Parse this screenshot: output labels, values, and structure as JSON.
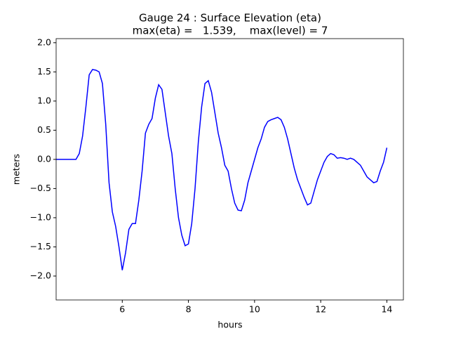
{
  "chart_data": {
    "type": "line",
    "title": "Gauge 24 : Surface Elevation (eta)",
    "subtitle": "max(eta) =   1.539,    max(level) = 7",
    "xlabel": "hours",
    "ylabel": "meters",
    "xlim": [
      4.0,
      14.5
    ],
    "ylim": [
      -2.41,
      2.07
    ],
    "xticks": [
      6,
      8,
      10,
      12,
      14
    ],
    "yticks": [
      {
        "value": -2.0,
        "label": "−2.0"
      },
      {
        "value": -1.5,
        "label": "−1.5"
      },
      {
        "value": -1.0,
        "label": "−1.0"
      },
      {
        "value": -0.5,
        "label": "−0.5"
      },
      {
        "value": 0.0,
        "label": "0.0"
      },
      {
        "value": 0.5,
        "label": "0.5"
      },
      {
        "value": 1.0,
        "label": "1.0"
      },
      {
        "value": 1.5,
        "label": "1.5"
      },
      {
        "value": 2.0,
        "label": "2.0"
      }
    ],
    "x": [
      4.0,
      4.2,
      4.4,
      4.6,
      4.7,
      4.8,
      4.9,
      5.0,
      5.1,
      5.2,
      5.3,
      5.4,
      5.5,
      5.6,
      5.7,
      5.8,
      5.9,
      6.0,
      6.1,
      6.2,
      6.3,
      6.4,
      6.5,
      6.6,
      6.7,
      6.8,
      6.9,
      7.0,
      7.1,
      7.2,
      7.3,
      7.4,
      7.5,
      7.6,
      7.7,
      7.8,
      7.9,
      8.0,
      8.1,
      8.2,
      8.3,
      8.4,
      8.5,
      8.6,
      8.7,
      8.8,
      8.9,
      9.0,
      9.1,
      9.2,
      9.3,
      9.4,
      9.5,
      9.6,
      9.7,
      9.8,
      9.9,
      10.0,
      10.1,
      10.2,
      10.3,
      10.4,
      10.5,
      10.6,
      10.7,
      10.8,
      10.9,
      11.0,
      11.1,
      11.2,
      11.3,
      11.4,
      11.5,
      11.6,
      11.7,
      11.8,
      11.9,
      12.0,
      12.1,
      12.2,
      12.3,
      12.4,
      12.5,
      12.6,
      12.7,
      12.8,
      12.9,
      13.0,
      13.1,
      13.2,
      13.3,
      13.4,
      13.5,
      13.6,
      13.7,
      13.8,
      13.9,
      14.0
    ],
    "series": [
      {
        "name": "eta",
        "color": "#0000ff",
        "values": [
          0.0,
          0.0,
          0.0,
          0.0,
          0.1,
          0.4,
          0.9,
          1.45,
          1.54,
          1.53,
          1.5,
          1.3,
          0.6,
          -0.4,
          -0.9,
          -1.15,
          -1.5,
          -1.9,
          -1.6,
          -1.2,
          -1.1,
          -1.1,
          -0.7,
          -0.2,
          0.45,
          0.6,
          0.7,
          1.05,
          1.28,
          1.2,
          0.8,
          0.4,
          0.1,
          -0.5,
          -1.0,
          -1.3,
          -1.48,
          -1.45,
          -1.1,
          -0.5,
          0.3,
          0.9,
          1.3,
          1.35,
          1.15,
          0.8,
          0.45,
          0.2,
          -0.1,
          -0.2,
          -0.5,
          -0.75,
          -0.87,
          -0.88,
          -0.7,
          -0.4,
          -0.2,
          0.0,
          0.2,
          0.35,
          0.55,
          0.65,
          0.68,
          0.7,
          0.72,
          0.68,
          0.55,
          0.35,
          0.1,
          -0.15,
          -0.35,
          -0.5,
          -0.65,
          -0.78,
          -0.75,
          -0.55,
          -0.35,
          -0.2,
          -0.05,
          0.05,
          0.1,
          0.08,
          0.02,
          0.03,
          0.02,
          0.0,
          0.02,
          0.0,
          -0.05,
          -0.1,
          -0.2,
          -0.3,
          -0.35,
          -0.4,
          -0.38,
          -0.2,
          -0.05,
          0.2
        ]
      }
    ]
  }
}
